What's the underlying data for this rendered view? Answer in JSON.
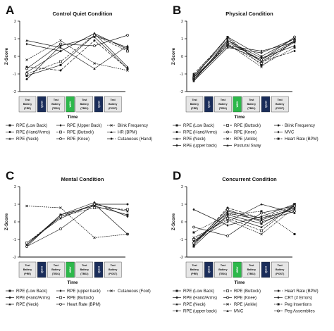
{
  "x_axis_label": "Time",
  "y_axis_label": "Z-Score",
  "timeline": [
    {
      "type": "test",
      "lines": [
        "Test",
        "Battery",
        "(PRE)"
      ]
    },
    {
      "type": "quiet",
      "label": "Quiet"
    },
    {
      "type": "test",
      "lines": [
        "Test",
        "Battery",
        "(TB01)"
      ]
    },
    {
      "type": "wbv",
      "label": "WBV"
    },
    {
      "type": "test",
      "lines": [
        "Test",
        "Battery",
        "(TB02)"
      ]
    },
    {
      "type": "quiet",
      "label": "Quiet"
    },
    {
      "type": "test",
      "lines": [
        "Test",
        "Battery",
        "(POST)"
      ]
    }
  ],
  "colors": {
    "quiet_box": "#1a2d5a",
    "wbv_box": "#2db84b",
    "test_box": "#e6e6e6",
    "line": "#1a1a1a"
  },
  "chart_data": [
    {
      "letter": "A",
      "title": "Control Quiet Condition",
      "type": "line",
      "x": [
        "PRE",
        "TB01",
        "TB02",
        "POST"
      ],
      "ylim": [
        -2,
        2
      ],
      "yticks": [
        -2,
        -1,
        0,
        1,
        2
      ],
      "legend_columns": 3,
      "series": [
        {
          "name": "RPE (Low Back)",
          "values": [
            -1.1,
            -0.5,
            1.2,
            0.5
          ]
        },
        {
          "name": "RPE (Hand/Arms)",
          "values": [
            -1.3,
            0.6,
            1.1,
            -0.7
          ]
        },
        {
          "name": "RPE (Neck)",
          "values": [
            -0.9,
            0.3,
            1.3,
            -0.6
          ]
        },
        {
          "name": "RPE (Upper Back)",
          "values": [
            0.7,
            0.3,
            1.3,
            0.4
          ]
        },
        {
          "name": "RPE (Buttock)",
          "values": [
            -1.0,
            -0.3,
            1.2,
            0.3
          ]
        },
        {
          "name": "RPE (Knee)",
          "values": [
            -0.7,
            0.7,
            0.6,
            1.2
          ]
        },
        {
          "name": "Blink Frequency",
          "values": [
            -0.2,
            0.9,
            -0.4,
            -0.8
          ]
        },
        {
          "name": "HR (BPM)",
          "values": [
            0.9,
            0.5,
            -0.7,
            0.6
          ]
        },
        {
          "name": "Cutaneous (Hand)",
          "values": [
            -0.6,
            -0.8,
            0.9,
            -0.7
          ]
        }
      ]
    },
    {
      "letter": "B",
      "title": "Physical Condition",
      "type": "line",
      "x": [
        "PRE",
        "TB01",
        "TB02",
        "POST"
      ],
      "ylim": [
        -2,
        2
      ],
      "yticks": [
        -2,
        -1,
        0,
        1,
        2
      ],
      "legend_columns": 3,
      "series": [
        {
          "name": "RPE (Low Back)",
          "values": [
            -1.2,
            1.1,
            0.0,
            1.0
          ]
        },
        {
          "name": "RPE (Hand/Arms)",
          "values": [
            -1.3,
            0.8,
            -0.2,
            0.9
          ]
        },
        {
          "name": "RPE (Neck)",
          "values": [
            -1.1,
            0.9,
            -0.3,
            0.8
          ]
        },
        {
          "name": "RPE (upper back)",
          "values": [
            -1.4,
            0.9,
            -0.1,
            0.6
          ]
        },
        {
          "name": "RPE (Buttock)",
          "values": [
            -1.3,
            0.7,
            -0.4,
            0.9
          ]
        },
        {
          "name": "RPE (Knee)",
          "values": [
            -1.2,
            0.6,
            -0.2,
            1.1
          ]
        },
        {
          "name": "RPE (Ankle)",
          "values": [
            -1.2,
            0.7,
            -0.6,
            0.9
          ]
        },
        {
          "name": "Postural Sway",
          "values": [
            -1.4,
            0.5,
            0.2,
            1.0
          ]
        },
        {
          "name": "Blink Frequency",
          "values": [
            -1.0,
            1.0,
            -0.3,
            0.3
          ]
        },
        {
          "name": "MVC",
          "values": [
            -1.3,
            0.6,
            0.3,
            0.8
          ]
        },
        {
          "name": "Heart Rate (BPM)",
          "values": [
            -1.1,
            1.1,
            -0.5,
            0.5
          ]
        }
      ]
    },
    {
      "letter": "C",
      "title": "Mental Condition",
      "type": "line",
      "x": [
        "PRE",
        "TB01",
        "TB02",
        "POST"
      ],
      "ylim": [
        -2,
        2
      ],
      "yticks": [
        -2,
        -1,
        0,
        1,
        2
      ],
      "legend_columns": 3,
      "series": [
        {
          "name": "RPE (Low Back)",
          "values": [
            -1.4,
            0.4,
            0.9,
            0.4
          ]
        },
        {
          "name": "RPE (Hand/Arms)",
          "values": [
            -1.3,
            0.3,
            1.0,
            1.0
          ]
        },
        {
          "name": "RPE (Neck)",
          "values": [
            -1.2,
            0.2,
            1.0,
            0.6
          ]
        },
        {
          "name": "RPE (upper back)",
          "values": [
            -1.3,
            0.4,
            1.1,
            0.3
          ]
        },
        {
          "name": "RPE (Buttock)",
          "values": [
            -1.2,
            0.3,
            0.8,
            0.7
          ]
        },
        {
          "name": "Heart Rate (BPM)",
          "values": [
            -1.4,
            -0.4,
            1.0,
            -0.7
          ]
        },
        {
          "name": "Cutaneous (Foot)",
          "values": [
            0.9,
            0.8,
            -0.9,
            -0.7
          ]
        }
      ]
    },
    {
      "letter": "D",
      "title": "Concurrent Condition",
      "type": "line",
      "x": [
        "PRE",
        "TB01",
        "TB02",
        "POST"
      ],
      "ylim": [
        -2,
        2
      ],
      "yticks": [
        -2,
        -1,
        0,
        1,
        2
      ],
      "legend_columns": 3,
      "series": [
        {
          "name": "RPE (Low Back)",
          "values": [
            -1.4,
            0.4,
            -0.1,
            0.9
          ]
        },
        {
          "name": "RPE (Hand/Arms)",
          "values": [
            -1.2,
            0.5,
            0.1,
            0.8
          ]
        },
        {
          "name": "RPE (Neck)",
          "values": [
            -1.1,
            0.3,
            -0.3,
            0.9
          ]
        },
        {
          "name": "RPE (upper back)",
          "values": [
            -1.3,
            0.6,
            0.2,
            0.7
          ]
        },
        {
          "name": "RPE (Buttock)",
          "values": [
            -1.0,
            0.2,
            -0.5,
            1.0
          ]
        },
        {
          "name": "RPE (Knee)",
          "values": [
            -1.2,
            0.7,
            0.0,
            0.6
          ]
        },
        {
          "name": "RPE (Ankle)",
          "values": [
            -0.9,
            0.1,
            -0.7,
            0.8
          ]
        },
        {
          "name": "MVC",
          "values": [
            -1.1,
            0.0,
            1.0,
            0.5
          ]
        },
        {
          "name": "Heart Rate (BPM)",
          "values": [
            -1.3,
            0.8,
            0.2,
            0.9
          ]
        },
        {
          "name": "CRT (# Errors)",
          "values": [
            0.7,
            -0.2,
            0.3,
            1.0
          ]
        },
        {
          "name": "Peg Insertions",
          "values": [
            -0.6,
            0.4,
            0.6,
            -0.7
          ]
        },
        {
          "name": "Peg Assemblies",
          "values": [
            -0.3,
            -0.8,
            0.5,
            0.9
          ]
        }
      ]
    }
  ]
}
